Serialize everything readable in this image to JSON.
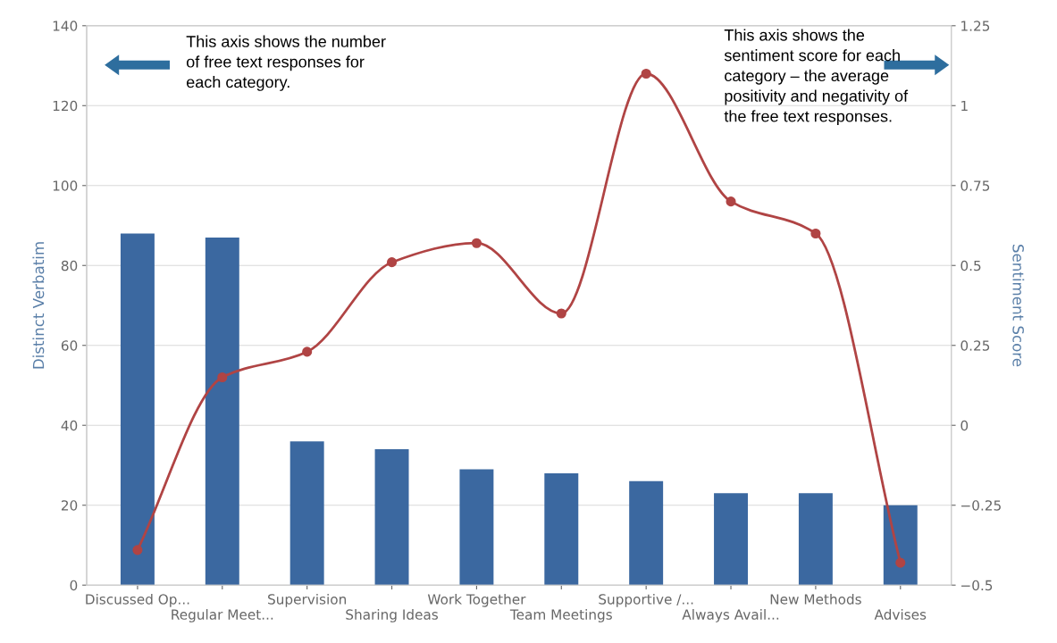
{
  "chart_data": {
    "type": "bar",
    "ylabel": "Distinct Verbatim",
    "y2label": "Sentiment Score",
    "categories": [
      "Discussed Op...",
      "Regular Meet...",
      "Supervision",
      "Sharing Ideas",
      "Work Together",
      "Team Meetings",
      "Supportive /...",
      "Always Avail...",
      "New Methods",
      "Advises"
    ],
    "series": [
      {
        "color": "#3b68a0",
        "values": [
          88,
          87,
          36,
          34,
          29,
          28,
          26,
          23,
          23,
          20
        ]
      },
      {
        "type": "line",
        "axis": "y2",
        "color": "#b04444",
        "marker": "circle",
        "values": [
          -0.39,
          0.15,
          0.23,
          0.51,
          0.57,
          0.35,
          1.1,
          0.7,
          0.6,
          -0.43
        ]
      }
    ],
    "ylim": [
      0,
      140
    ],
    "yticks": [
      0,
      20,
      40,
      60,
      80,
      100,
      120,
      140
    ],
    "y2lim": [
      -0.5,
      1.25
    ],
    "y2ticks": [
      {
        "value": -0.5,
        "label": "−0.5"
      },
      {
        "value": -0.25,
        "label": "−0.25"
      },
      0,
      0.25,
      0.5,
      0.75,
      1,
      1.25
    ],
    "grid": "y",
    "annotations": [
      "This axis shows the number of free text responses for each category.",
      "This axis shows the sentiment score for each category – the average positivity and negativity of the free text responses."
    ]
  }
}
